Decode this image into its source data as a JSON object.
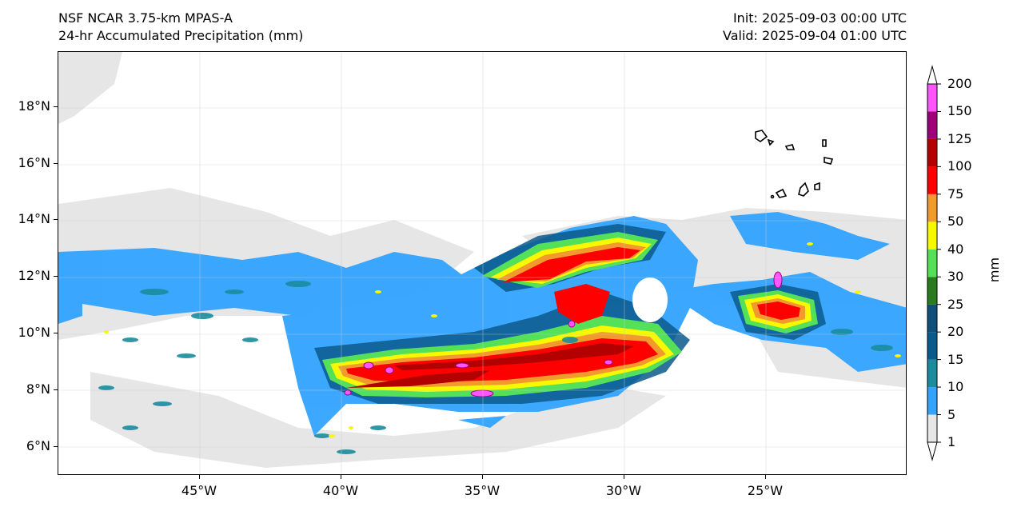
{
  "header": {
    "title_line1": "NSF NCAR 3.75-km MPAS-A",
    "title_line2": "24-hr Accumulated Precipitation (mm)",
    "init": "Init: 2025-09-03 00:00 UTC",
    "valid": "Valid: 2025-09-04 01:00 UTC"
  },
  "map": {
    "lon_range": [
      -50,
      -20
    ],
    "lat_range": [
      5,
      20
    ],
    "y_ticks": [
      "18°N",
      "16°N",
      "14°N",
      "12°N",
      "10°N",
      "8°N",
      "6°N"
    ],
    "y_tick_lats": [
      18,
      16,
      14,
      12,
      10,
      8,
      6
    ],
    "x_ticks": [
      "45°W",
      "40°W",
      "35°W",
      "30°W",
      "25°W"
    ],
    "x_tick_lons": [
      -45,
      -40,
      -35,
      -30,
      -25
    ],
    "features": [
      "Cabo Verde islands outline",
      "Tropical cyclone rainbands"
    ]
  },
  "colorbar": {
    "unit": "mm",
    "levels": [
      "1",
      "5",
      "10",
      "15",
      "20",
      "25",
      "30",
      "40",
      "50",
      "75",
      "100",
      "125",
      "150",
      "200"
    ],
    "colors": [
      "#e6e6e6",
      "#32a3ff",
      "#1a8c9e",
      "#0a5a8c",
      "#0f4f7a",
      "#2a7a1e",
      "#55e05a",
      "#f8f800",
      "#f29a2e",
      "#ff0000",
      "#b30000",
      "#9e0079",
      "#ff55ff"
    ]
  }
}
